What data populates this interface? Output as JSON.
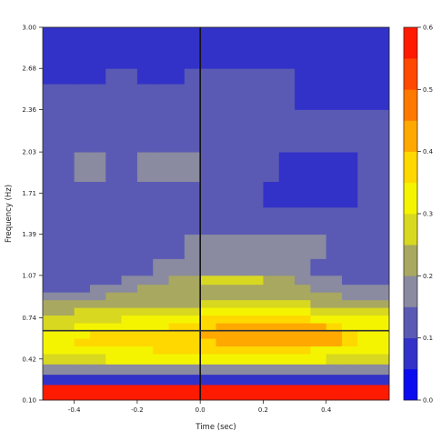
{
  "chart_data": {
    "type": "heatmap",
    "title": "",
    "xlabel": "Time (sec)",
    "ylabel": "Frequency (Hz)",
    "xlim": [
      -0.5,
      0.6
    ],
    "ylim": [
      0.1,
      3.0
    ],
    "x_ticks": [
      "-0.4",
      "-0.2",
      "0.0",
      "0.2",
      "0.4"
    ],
    "x_tick_values": [
      -0.4,
      -0.2,
      0.0,
      0.2,
      0.4
    ],
    "y_ticks": [
      "0.10",
      "0.42",
      "0.74",
      "1.07",
      "1.39",
      "1.71",
      "2.03",
      "2.36",
      "2.68",
      "3.00"
    ],
    "y_tick_values": [
      0.1,
      0.42,
      0.74,
      1.07,
      1.39,
      1.71,
      2.03,
      2.36,
      2.68,
      3.0
    ],
    "colorbar": {
      "ticks": [
        "0.0",
        "0.1",
        "0.2",
        "0.3",
        "0.4",
        "0.5",
        "0.6"
      ],
      "min": 0.0,
      "max": 0.6,
      "bins": 12,
      "colors": [
        "#0b0bf0",
        "#3232c8",
        "#5a5ab4",
        "#8a8aa0",
        "#a8a860",
        "#d8d820",
        "#f4f400",
        "#ffd800",
        "#ffa800",
        "#ff7800",
        "#ff4800",
        "#ff1a00"
      ]
    },
    "reference_lines": {
      "vertical_x": 0.0,
      "horizontal_y": 0.64
    },
    "x_edges": [
      -0.5,
      -0.4,
      -0.35,
      -0.3,
      -0.25,
      -0.2,
      -0.15,
      -0.1,
      -0.05,
      0.0,
      0.05,
      0.1,
      0.15,
      0.2,
      0.25,
      0.3,
      0.35,
      0.4,
      0.45,
      0.5,
      0.6
    ],
    "y_edges": [
      0.1,
      0.22,
      0.3,
      0.38,
      0.46,
      0.52,
      0.58,
      0.64,
      0.7,
      0.76,
      0.82,
      0.88,
      0.94,
      1.0,
      1.07,
      1.2,
      1.39,
      1.6,
      1.8,
      2.03,
      2.36,
      2.56,
      2.68,
      3.0
    ],
    "values": [
      [
        0.58,
        0.58,
        0.58,
        0.58,
        0.58,
        0.58,
        0.58,
        0.58,
        0.58,
        0.58,
        0.58,
        0.58,
        0.58,
        0.58,
        0.58,
        0.58,
        0.58,
        0.58,
        0.58,
        0.58
      ],
      [
        0.05,
        0.05,
        0.05,
        0.05,
        0.05,
        0.05,
        0.05,
        0.05,
        0.05,
        0.05,
        0.05,
        0.05,
        0.05,
        0.05,
        0.05,
        0.05,
        0.05,
        0.05,
        0.05,
        0.05
      ],
      [
        0.18,
        0.18,
        0.18,
        0.18,
        0.18,
        0.18,
        0.18,
        0.18,
        0.18,
        0.18,
        0.18,
        0.18,
        0.18,
        0.18,
        0.18,
        0.18,
        0.18,
        0.18,
        0.18,
        0.18
      ],
      [
        0.28,
        0.28,
        0.28,
        0.32,
        0.32,
        0.32,
        0.32,
        0.32,
        0.32,
        0.32,
        0.32,
        0.32,
        0.32,
        0.32,
        0.32,
        0.32,
        0.32,
        0.28,
        0.28,
        0.28
      ],
      [
        0.32,
        0.32,
        0.32,
        0.32,
        0.32,
        0.32,
        0.36,
        0.36,
        0.36,
        0.36,
        0.36,
        0.36,
        0.36,
        0.36,
        0.36,
        0.36,
        0.32,
        0.32,
        0.32,
        0.32
      ],
      [
        0.32,
        0.36,
        0.36,
        0.36,
        0.36,
        0.36,
        0.36,
        0.36,
        0.36,
        0.36,
        0.41,
        0.41,
        0.41,
        0.41,
        0.41,
        0.41,
        0.41,
        0.41,
        0.36,
        0.32
      ],
      [
        0.32,
        0.32,
        0.36,
        0.36,
        0.36,
        0.36,
        0.36,
        0.36,
        0.36,
        0.41,
        0.41,
        0.41,
        0.41,
        0.41,
        0.41,
        0.41,
        0.41,
        0.41,
        0.36,
        0.32
      ],
      [
        0.28,
        0.32,
        0.32,
        0.32,
        0.32,
        0.32,
        0.32,
        0.36,
        0.36,
        0.36,
        0.41,
        0.41,
        0.41,
        0.41,
        0.41,
        0.41,
        0.41,
        0.36,
        0.32,
        0.32
      ],
      [
        0.28,
        0.28,
        0.28,
        0.28,
        0.32,
        0.32,
        0.32,
        0.32,
        0.32,
        0.36,
        0.36,
        0.36,
        0.36,
        0.36,
        0.36,
        0.36,
        0.32,
        0.32,
        0.32,
        0.32
      ],
      [
        0.22,
        0.28,
        0.28,
        0.28,
        0.28,
        0.28,
        0.28,
        0.28,
        0.28,
        0.32,
        0.32,
        0.32,
        0.32,
        0.32,
        0.32,
        0.32,
        0.28,
        0.28,
        0.28,
        0.28
      ],
      [
        0.22,
        0.22,
        0.22,
        0.22,
        0.22,
        0.22,
        0.22,
        0.22,
        0.22,
        0.28,
        0.28,
        0.28,
        0.28,
        0.28,
        0.28,
        0.28,
        0.22,
        0.22,
        0.22,
        0.22
      ],
      [
        0.18,
        0.18,
        0.18,
        0.22,
        0.22,
        0.22,
        0.22,
        0.22,
        0.22,
        0.22,
        0.22,
        0.22,
        0.22,
        0.22,
        0.22,
        0.22,
        0.22,
        0.22,
        0.18,
        0.18
      ],
      [
        0.12,
        0.12,
        0.18,
        0.18,
        0.18,
        0.22,
        0.22,
        0.22,
        0.22,
        0.22,
        0.22,
        0.22,
        0.22,
        0.22,
        0.22,
        0.22,
        0.18,
        0.18,
        0.18,
        0.18
      ],
      [
        0.12,
        0.12,
        0.12,
        0.12,
        0.18,
        0.18,
        0.18,
        0.22,
        0.22,
        0.28,
        0.28,
        0.28,
        0.28,
        0.22,
        0.22,
        0.18,
        0.18,
        0.18,
        0.12,
        0.12
      ],
      [
        0.12,
        0.12,
        0.12,
        0.12,
        0.12,
        0.12,
        0.18,
        0.18,
        0.18,
        0.18,
        0.18,
        0.18,
        0.18,
        0.18,
        0.18,
        0.18,
        0.12,
        0.12,
        0.12,
        0.12
      ],
      [
        0.12,
        0.12,
        0.12,
        0.12,
        0.12,
        0.12,
        0.12,
        0.12,
        0.18,
        0.18,
        0.18,
        0.18,
        0.18,
        0.18,
        0.18,
        0.18,
        0.18,
        0.12,
        0.12,
        0.12
      ],
      [
        0.12,
        0.12,
        0.12,
        0.12,
        0.12,
        0.12,
        0.12,
        0.12,
        0.12,
        0.12,
        0.12,
        0.12,
        0.12,
        0.12,
        0.12,
        0.12,
        0.12,
        0.12,
        0.12,
        0.12
      ],
      [
        0.12,
        0.12,
        0.12,
        0.12,
        0.12,
        0.12,
        0.12,
        0.12,
        0.12,
        0.12,
        0.12,
        0.12,
        0.12,
        0.05,
        0.05,
        0.05,
        0.05,
        0.05,
        0.05,
        0.12
      ],
      [
        0.12,
        0.18,
        0.18,
        0.12,
        0.12,
        0.18,
        0.18,
        0.18,
        0.18,
        0.12,
        0.12,
        0.12,
        0.12,
        0.12,
        0.05,
        0.05,
        0.05,
        0.05,
        0.05,
        0.12
      ],
      [
        0.12,
        0.12,
        0.12,
        0.12,
        0.12,
        0.12,
        0.12,
        0.12,
        0.12,
        0.12,
        0.12,
        0.12,
        0.12,
        0.12,
        0.12,
        0.12,
        0.12,
        0.12,
        0.12,
        0.12
      ],
      [
        0.12,
        0.12,
        0.12,
        0.12,
        0.12,
        0.12,
        0.12,
        0.12,
        0.12,
        0.12,
        0.12,
        0.12,
        0.12,
        0.12,
        0.12,
        0.05,
        0.05,
        0.05,
        0.05,
        0.05
      ],
      [
        0.05,
        0.05,
        0.05,
        0.12,
        0.12,
        0.05,
        0.05,
        0.05,
        0.12,
        0.12,
        0.12,
        0.12,
        0.12,
        0.12,
        0.12,
        0.05,
        0.05,
        0.05,
        0.05,
        0.05
      ],
      [
        0.05,
        0.05,
        0.05,
        0.05,
        0.05,
        0.05,
        0.05,
        0.05,
        0.05,
        0.05,
        0.05,
        0.05,
        0.05,
        0.05,
        0.05,
        0.05,
        0.05,
        0.05,
        0.05,
        0.05
      ]
    ]
  }
}
